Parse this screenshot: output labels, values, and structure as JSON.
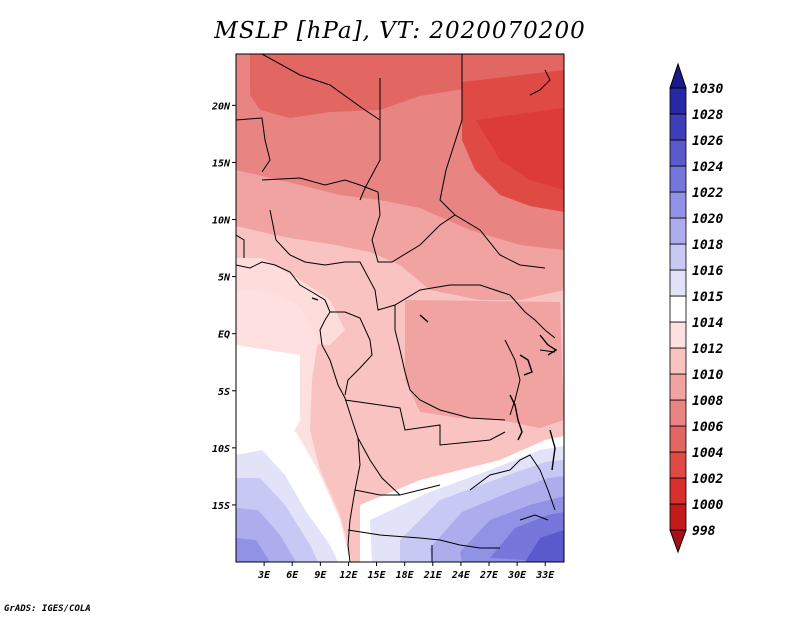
{
  "map": {
    "title": "MSLP [hPa], VT: 2020070200",
    "footer": "GrADS: IGES/COLA",
    "lon_labels": [
      "3E",
      "6E",
      "9E",
      "12E",
      "15E",
      "18E",
      "21E",
      "24E",
      "27E",
      "30E",
      "33E"
    ],
    "lat_labels": [
      "20N",
      "15N",
      "10N",
      "5N",
      "EQ",
      "5S",
      "10S",
      "15S"
    ],
    "lon_range": [
      0,
      35
    ],
    "lat_range": [
      -20,
      24.5
    ]
  },
  "colorbar": {
    "levels": [
      "998",
      "1000",
      "1002",
      "1004",
      "1006",
      "1008",
      "1010",
      "1012",
      "1014",
      "1015",
      "1016",
      "1018",
      "1020",
      "1022",
      "1024",
      "1026",
      "1028",
      "1030"
    ],
    "colors": [
      "#a50f15",
      "#c41a1a",
      "#d8302c",
      "#e04a45",
      "#e26662",
      "#e88583",
      "#f0a3a1",
      "#f8c3c1",
      "#fde0df",
      "#ffffff",
      "#e2e2f8",
      "#c8c8f4",
      "#adadee",
      "#9191e5",
      "#7676db",
      "#5a5acc",
      "#3e3eb8",
      "#2828a4",
      "#1a1a8a"
    ]
  }
}
